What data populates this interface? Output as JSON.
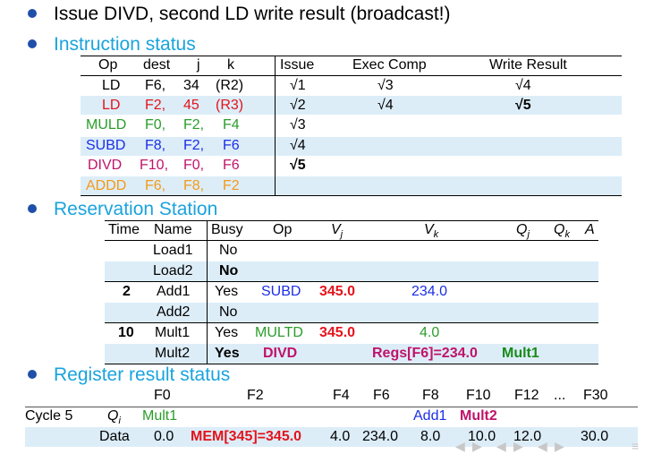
{
  "title": "Issue DIVD, second LD write result (broadcast!)",
  "instruction_status": {
    "heading": "Instruction status",
    "headers": {
      "op": "Op",
      "dest": "dest",
      "j": "j",
      "k": "k",
      "issue": "Issue",
      "exec": "Exec Comp",
      "write": "Write Result"
    },
    "rows": [
      {
        "op": "LD",
        "dest": "F6,",
        "j": "34",
        "k": "(R2)",
        "issue": "√1",
        "exec": "√3",
        "write": "√4"
      },
      {
        "op": "LD",
        "dest": "F2,",
        "j": "45",
        "k": "(R3)",
        "issue": "√2",
        "exec": "√4",
        "write": "√5"
      },
      {
        "op": "MULD",
        "dest": "F0,",
        "j": "F2,",
        "k": "F4",
        "issue": "√3",
        "exec": "",
        "write": ""
      },
      {
        "op": "SUBD",
        "dest": "F8,",
        "j": "F2,",
        "k": "F6",
        "issue": "√4",
        "exec": "",
        "write": ""
      },
      {
        "op": "DIVD",
        "dest": "F10,",
        "j": "F0,",
        "k": "F6",
        "issue": "√5",
        "exec": "",
        "write": ""
      },
      {
        "op": "ADDD",
        "dest": "F6,",
        "j": "F8,",
        "k": "F2",
        "issue": "",
        "exec": "",
        "write": ""
      }
    ]
  },
  "reservation_station": {
    "heading": "Reservation Station",
    "headers": {
      "time": "Time",
      "name": "Name",
      "busy": "Busy",
      "op": "Op",
      "vj": "V",
      "vj_sub": "j",
      "vk": "V",
      "vk_sub": "k",
      "qj": "Q",
      "qj_sub": "j",
      "qk": "Q",
      "qk_sub": "k",
      "a": "A"
    },
    "rows": [
      {
        "time": "",
        "name": "Load1",
        "busy": "No",
        "op": "",
        "vj": "",
        "vk": "",
        "qj": "",
        "qk": "",
        "a": ""
      },
      {
        "time": "",
        "name": "Load2",
        "busy": "No",
        "op": "",
        "vj": "",
        "vk": "",
        "qj": "",
        "qk": "",
        "a": ""
      },
      {
        "time": "2",
        "name": "Add1",
        "busy": "Yes",
        "op": "SUBD",
        "vj": "345.0",
        "vk": "234.0",
        "qj": "",
        "qk": "",
        "a": ""
      },
      {
        "time": "",
        "name": "Add2",
        "busy": "No",
        "op": "",
        "vj": "",
        "vk": "",
        "qj": "",
        "qk": "",
        "a": ""
      },
      {
        "time": "10",
        "name": "Mult1",
        "busy": "Yes",
        "op": "MULTD",
        "vj": "345.0",
        "vk": "4.0",
        "qj": "",
        "qk": "",
        "a": ""
      },
      {
        "time": "",
        "name": "Mult2",
        "busy": "Yes",
        "op": "DIVD",
        "vj": "",
        "vk": "Regs[F6]=234.0",
        "qj": "Mult1",
        "qk": "",
        "a": ""
      }
    ]
  },
  "register_status": {
    "heading": "Register result status",
    "registers": [
      "F0",
      "F2",
      "F4",
      "F6",
      "F8",
      "F10",
      "F12",
      "...",
      "F30"
    ],
    "cycle_label": "Cycle 5",
    "qi_label": "Q",
    "qi_sub": "i",
    "qi": {
      "F0": "Mult1",
      "F8": "Add1",
      "F10": "Mult2"
    },
    "data_label": "Data",
    "data": {
      "F0": "0.0",
      "F2": "MEM[345]=345.0",
      "F4": "4.0",
      "F6": "234.0",
      "F8": "8.0",
      "F10": "10.0",
      "F12": "12.0",
      "F30": "30.0"
    }
  },
  "colors": {
    "section": "#1aa3dd",
    "bullet": "#1f4fa8",
    "band": "#dcedf8",
    "blue": "#1b2ee6",
    "red": "#e4131b",
    "green": "#2a9d2a",
    "violet": "#c0136a",
    "orange": "#f29a1a"
  }
}
